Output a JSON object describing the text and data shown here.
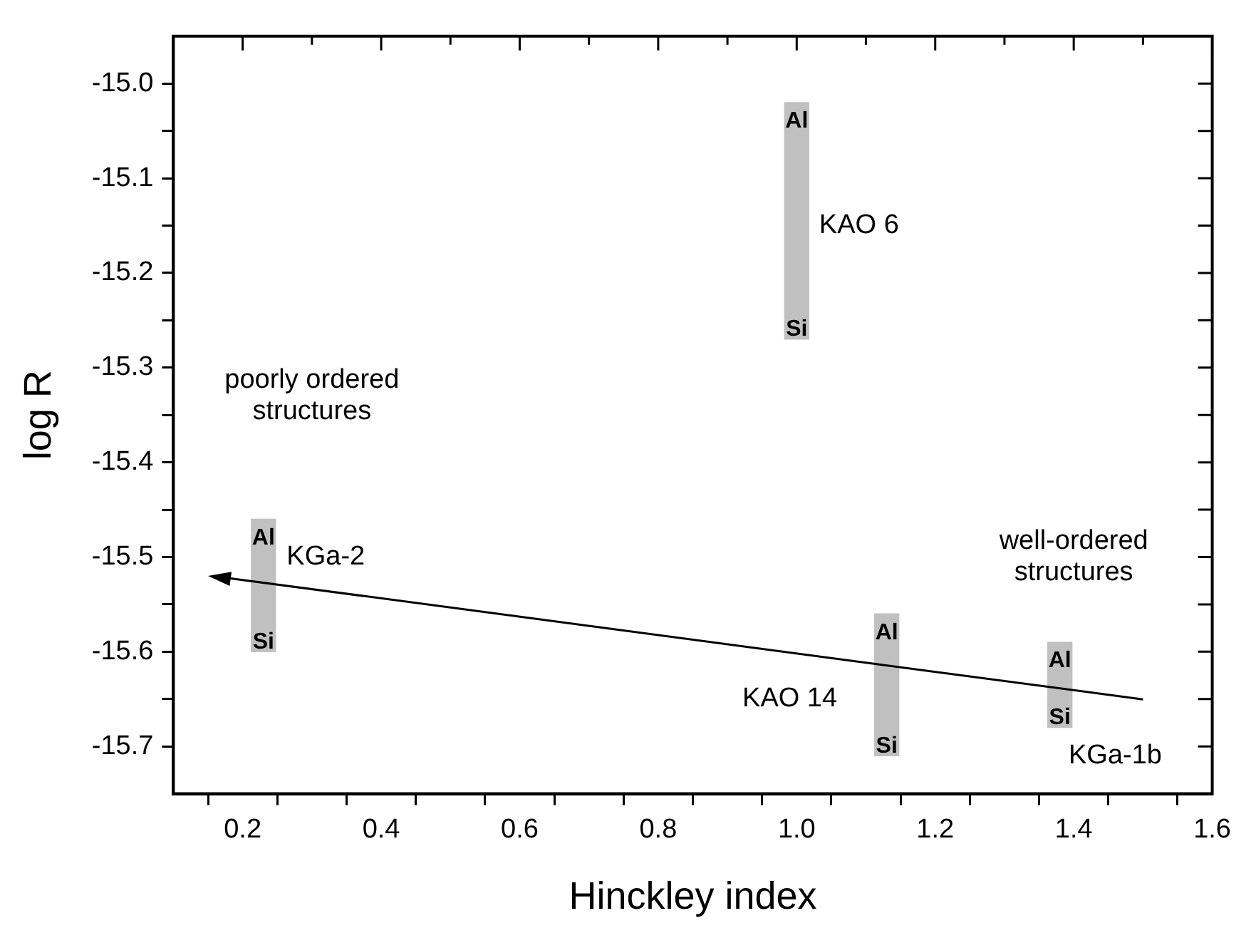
{
  "chart_data": {
    "type": "bar",
    "xlabel": "Hinckley index",
    "ylabel": "log R",
    "xlim": [
      0.1,
      1.6
    ],
    "ylim": [
      -15.75,
      -14.95
    ],
    "xticks": [
      0.2,
      {
        "value": 0.3,
        "label": null
      },
      0.4,
      {
        "value": 0.5,
        "label": null
      },
      0.6,
      {
        "value": 0.7,
        "label": null
      },
      0.8,
      {
        "value": 0.9,
        "label": null
      },
      {
        "value": 1,
        "label": "1.0"
      },
      {
        "value": 1.1,
        "label": null
      },
      1.2,
      {
        "value": 1.3,
        "label": null
      },
      1.4,
      {
        "value": 1.5,
        "label": null
      },
      1.6
    ],
    "yticks": [
      -15.7,
      {
        "value": -15.65,
        "label": null
      },
      -15.6,
      {
        "value": -15.55,
        "label": null
      },
      -15.5,
      {
        "value": -15.45,
        "label": null
      },
      -15.4,
      {
        "value": -15.35,
        "label": null
      },
      -15.3,
      {
        "value": -15.25,
        "label": null
      },
      -15.2,
      {
        "value": -15.15,
        "label": null
      },
      -15.1,
      {
        "value": -15.05,
        "label": null
      },
      {
        "value": -15,
        "label": "-15.0"
      }
    ],
    "series": [
      {
        "color": "#c0c0c0",
        "x": [
          0.23,
          1.0,
          1.13,
          1.38
        ],
        "base": [
          -15.6,
          -15.27,
          -15.71,
          -15.68
        ],
        "values": [
          0.14,
          0.25,
          0.15,
          0.09
        ]
      }
    ],
    "annotations": [
      "Al",
      "Si",
      "Al",
      "Si",
      "Al",
      "Si",
      "Al",
      "Si",
      "KGa-2",
      "KAO 6",
      "KAO 14",
      "KGa-1b",
      "poorly ordered structures",
      "well-ordered structures"
    ]
  }
}
